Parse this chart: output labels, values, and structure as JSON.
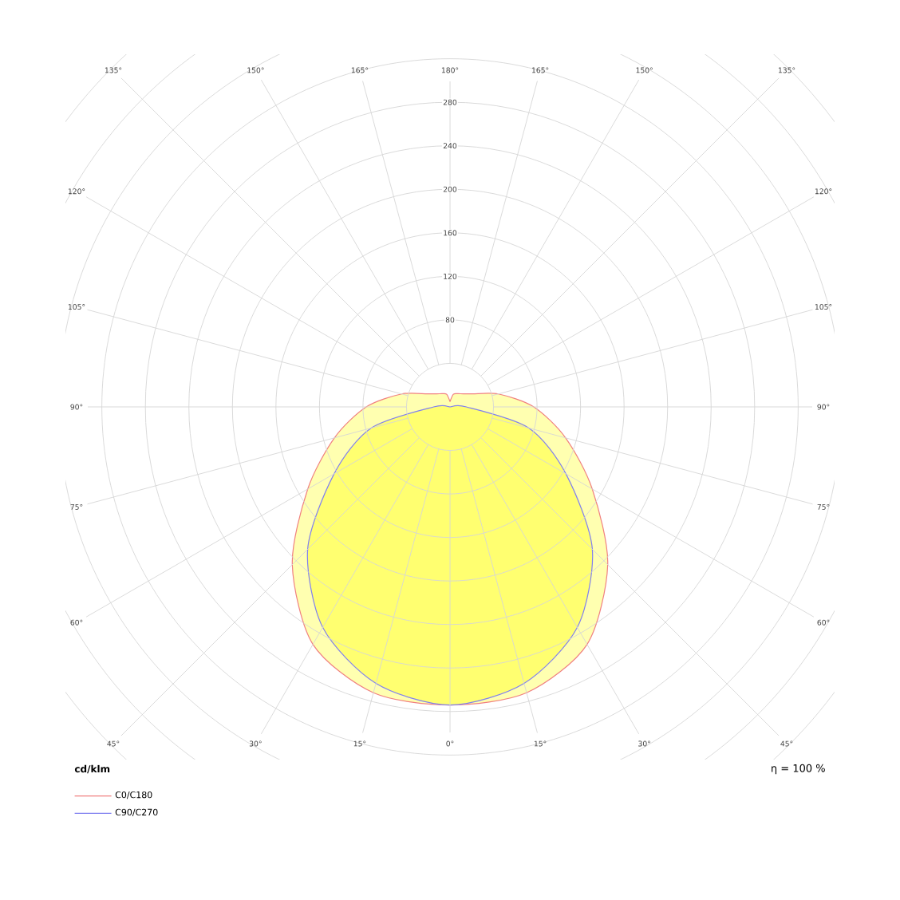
{
  "chart_data": {
    "type": "radar",
    "categories": [
      "180°",
      "165°",
      "150°",
      "135°",
      "120°",
      "105°",
      "90°",
      "75°",
      "60°",
      "45°",
      "30°",
      "15°",
      "0°",
      "15°",
      "30°",
      "45°",
      "60°",
      "75°",
      "90°",
      "105°",
      "120°",
      "135°",
      "150°",
      "165°"
    ],
    "series": [
      {
        "name": "C0/C180",
        "color": "#f08080",
        "values": [
          5,
          12,
          14,
          17,
          24,
          46,
          77,
          110,
          151,
          205,
          252,
          272,
          274,
          272,
          252,
          205,
          151,
          110,
          77,
          46,
          24,
          17,
          14,
          12
        ]
      },
      {
        "name": "C90/C270",
        "color": "#8080f0",
        "values": [
          0,
          0,
          0,
          0,
          0,
          0,
          15,
          75,
          123,
          185,
          234,
          263,
          274,
          263,
          234,
          185,
          123,
          75,
          15,
          0,
          0,
          0,
          0,
          0
        ]
      }
    ],
    "ylim": [
      0,
      440
    ],
    "yticks": [
      80,
      120,
      160,
      200,
      240,
      280
    ],
    "ylabel": "cd/klm",
    "annotations": [
      "η = 100 %"
    ],
    "legend": "bottom left",
    "grid": true
  }
}
